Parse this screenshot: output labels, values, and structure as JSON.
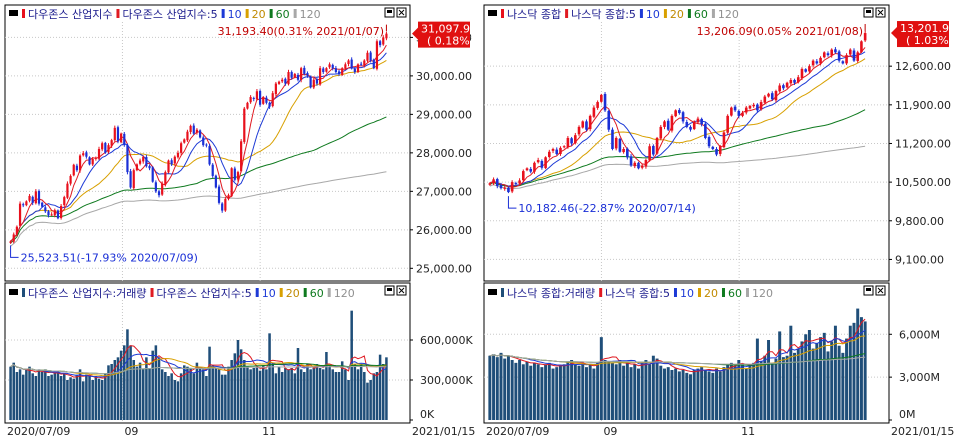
{
  "colors": {
    "up": "#e8101c",
    "down": "#1a2fd6",
    "ma5": "#e01a22",
    "ma10": "#1d3ad6",
    "ma20": "#d8a000",
    "ma60": "#0f7a1f",
    "ma120": "#a8a8a8",
    "volume": "#1f4e79",
    "grid": "#c8c8c8",
    "axis_text": "#222222",
    "marker_text_high": "#c00000",
    "marker_text_low": "#1a2fd6",
    "price_box": "#e01010"
  },
  "charts": [
    {
      "id": "dow",
      "price_panel": {
        "legend": [
          {
            "text": "다우존스 산업지수",
            "color_key": "up"
          },
          {
            "text": "다우존스 산업지수:5",
            "color_key": "ma5"
          },
          {
            "text": "10",
            "color_key": "ma10"
          },
          {
            "text": "20",
            "color_key": "ma20"
          },
          {
            "text": "60",
            "color_key": "ma60"
          },
          {
            "text": "120",
            "color_key": "ma120"
          }
        ],
        "y_ticks": [
          "31,000.00",
          "30,000.00",
          "29,000.00",
          "28,000.00",
          "27,000.00",
          "26,000.00",
          "25,000.00"
        ],
        "current_price": "31,097.97",
        "current_change": "( 0.18%)",
        "high_marker": "31,193.40(0.31% 2021/01/07)",
        "low_marker": "25,523.51(-17.93% 2020/07/09)"
      },
      "volume_panel": {
        "legend": [
          {
            "text": "다우존스 산업지수:거래량",
            "color_key": "volume"
          },
          {
            "text": "다우존스 산업지수:5",
            "color_key": "ma5"
          },
          {
            "text": "10",
            "color_key": "ma10"
          },
          {
            "text": "20",
            "color_key": "ma20"
          },
          {
            "text": "60",
            "color_key": "ma60"
          },
          {
            "text": "120",
            "color_key": "ma120"
          }
        ],
        "y_ticks": [
          "600,000K",
          "300,000K",
          "0K"
        ]
      },
      "x_labels": [
        {
          "text": "2020/07/09",
          "pos": "start"
        },
        {
          "text": "09",
          "pos": "sep"
        },
        {
          "text": "11",
          "pos": "nov"
        }
      ],
      "end_date": "2021/01/15"
    },
    {
      "id": "nasdaq",
      "price_panel": {
        "legend": [
          {
            "text": "나스닥 종합",
            "color_key": "up"
          },
          {
            "text": "나스닥 종합:5",
            "color_key": "ma5"
          },
          {
            "text": "10",
            "color_key": "ma10"
          },
          {
            "text": "20",
            "color_key": "ma20"
          },
          {
            "text": "60",
            "color_key": "ma60"
          },
          {
            "text": "120",
            "color_key": "ma120"
          }
        ],
        "y_ticks": [
          "12,600.00",
          "11,900.00",
          "11,200.00",
          "10,500.00",
          "9,800.00",
          "9,100.00"
        ],
        "current_price": "13,201.98",
        "current_change": "( 1.03%)",
        "high_marker": "13,206.09(0.05% 2021/01/08)",
        "low_marker": "10,182.46(-22.87% 2020/07/14)"
      },
      "volume_panel": {
        "legend": [
          {
            "text": "나스닥 종합:거래량",
            "color_key": "volume"
          },
          {
            "text": "나스닥 종합:5",
            "color_key": "ma5"
          },
          {
            "text": "10",
            "color_key": "ma10"
          },
          {
            "text": "20",
            "color_key": "ma20"
          },
          {
            "text": "60",
            "color_key": "ma60"
          },
          {
            "text": "120",
            "color_key": "ma120"
          }
        ],
        "y_ticks": [
          "6,000M",
          "3,000M",
          "0M"
        ]
      },
      "x_labels": [
        {
          "text": "2020/07/09",
          "pos": "start"
        },
        {
          "text": "09",
          "pos": "sep"
        },
        {
          "text": "11",
          "pos": "nov"
        }
      ],
      "end_date": "2021/01/15"
    }
  ],
  "chart_data": [
    {
      "type": "candlestick",
      "title": "다우존스 산업지수",
      "x_range": [
        "2020/07/09",
        "2021/01/15"
      ],
      "ylim": [
        24800,
        31400
      ],
      "close": [
        25700,
        25880,
        26080,
        26680,
        26640,
        26740,
        26880,
        26700,
        27000,
        26680,
        26600,
        26480,
        26380,
        26400,
        26510,
        26300,
        26620,
        26850,
        27200,
        27400,
        27690,
        27550,
        27930,
        27990,
        27900,
        27700,
        27840,
        27870,
        28100,
        28250,
        28000,
        28200,
        28330,
        28650,
        28300,
        28500,
        28200,
        27500,
        27100,
        27550,
        27700,
        27800,
        27900,
        27650,
        27600,
        27250,
        27000,
        26900,
        27200,
        27500,
        27800,
        27700,
        27900,
        28000,
        28250,
        28350,
        28550,
        28700,
        28500,
        28600,
        28400,
        28200,
        28200,
        27700,
        27400,
        27100,
        26700,
        26500,
        26800,
        26900,
        27600,
        27300,
        27500,
        28300,
        29150,
        29300,
        29450,
        29400,
        29600,
        29250,
        29450,
        29300,
        29200,
        29550,
        29800,
        29850,
        29900,
        29800,
        30100,
        29950,
        30050,
        29900,
        30200,
        30050,
        30000,
        29700,
        29900,
        29800,
        30200,
        30100,
        30200,
        30300,
        30200,
        30100,
        30050,
        30200,
        30300,
        30400,
        30200,
        30100,
        30300,
        30300,
        30400,
        30600,
        30400,
        30200,
        30900,
        30800,
        31000,
        31098
      ],
      "volume_k": [
        400000,
        430000,
        360000,
        380000,
        340000,
        380000,
        400000,
        350000,
        330000,
        380000,
        360000,
        380000,
        330000,
        340000,
        350000,
        370000,
        330000,
        350000,
        300000,
        320000,
        310000,
        340000,
        380000,
        290000,
        340000,
        330000,
        300000,
        330000,
        310000,
        300000,
        350000,
        410000,
        420000,
        450000,
        470000,
        520000,
        560000,
        680000,
        560000,
        450000,
        400000,
        430000,
        380000,
        470000,
        390000,
        520000,
        560000,
        470000,
        380000,
        360000,
        330000,
        350000,
        300000,
        290000,
        350000,
        410000,
        400000,
        390000,
        350000,
        430000,
        390000,
        380000,
        330000,
        550000,
        410000,
        390000,
        380000,
        340000,
        340000,
        400000,
        450000,
        500000,
        600000,
        530000,
        450000,
        400000,
        380000,
        390000,
        400000,
        370000,
        410000,
        380000,
        650000,
        430000,
        350000,
        400000,
        360000,
        390000,
        380000,
        390000,
        350000,
        540000,
        380000,
        360000,
        420000,
        380000,
        400000,
        420000,
        390000,
        380000,
        510000,
        400000,
        380000,
        360000,
        360000,
        440000,
        380000,
        300000,
        820000,
        420000,
        380000,
        420000,
        360000,
        280000,
        300000,
        350000,
        360000,
        490000,
        420000,
        470000
      ]
    },
    {
      "type": "candlestick",
      "title": "나스닥 종합",
      "x_range": [
        "2020/07/09",
        "2021/01/15"
      ],
      "ylim": [
        8800,
        13400
      ],
      "close": [
        10480,
        10550,
        10430,
        10390,
        10400,
        10320,
        10500,
        10480,
        10530,
        10700,
        10750,
        10690,
        10850,
        10900,
        10760,
        10950,
        11050,
        11100,
        11010,
        11120,
        11150,
        11300,
        11200,
        11350,
        11500,
        11600,
        11450,
        11700,
        11850,
        11950,
        12080,
        11800,
        11450,
        11100,
        11300,
        11050,
        11100,
        10950,
        10800,
        10850,
        10750,
        10800,
        10900,
        11150,
        11000,
        11300,
        11500,
        11600,
        11450,
        11700,
        11800,
        11750,
        11600,
        11500,
        11450,
        11600,
        11650,
        11550,
        11300,
        11150,
        11100,
        11000,
        11150,
        11400,
        11700,
        11850,
        11800,
        11700,
        11750,
        11850,
        11880,
        11900,
        11800,
        11950,
        12050,
        12100,
        12000,
        12150,
        12250,
        12200,
        12300,
        12350,
        12300,
        12400,
        12550,
        12500,
        12600,
        12700,
        12650,
        12750,
        12850,
        12800,
        12900,
        12850,
        12700,
        12650,
        12800,
        12900,
        12700,
        12850,
        13050,
        13200
      ],
      "volume_m": [
        4500,
        4600,
        4400,
        4700,
        4300,
        4500,
        4200,
        4000,
        4200,
        3900,
        4100,
        3800,
        4000,
        3900,
        3700,
        3900,
        4000,
        3600,
        3700,
        3800,
        3900,
        4100,
        4200,
        3900,
        3800,
        4000,
        3700,
        3900,
        3600,
        4000,
        5800,
        4200,
        4100,
        4000,
        3900,
        4200,
        3800,
        4000,
        3700,
        3900,
        3600,
        4000,
        4200,
        3900,
        4500,
        4300,
        3800,
        3600,
        3700,
        3500,
        3600,
        3400,
        3500,
        3300,
        3200,
        3500,
        3600,
        3700,
        3500,
        3400,
        3300,
        3600,
        3400,
        3700,
        3900,
        4000,
        3800,
        4200,
        3900,
        3600,
        3900,
        4000,
        5700,
        4100,
        4500,
        5600,
        4000,
        4300,
        6200,
        4400,
        4500,
        6600,
        4700,
        5000,
        5500,
        6000,
        6300,
        5000,
        5400,
        5800,
        6100,
        4800,
        5500,
        6600,
        5200,
        4700,
        5700,
        6600,
        6800,
        7800,
        7200,
        6900
      ]
    }
  ]
}
